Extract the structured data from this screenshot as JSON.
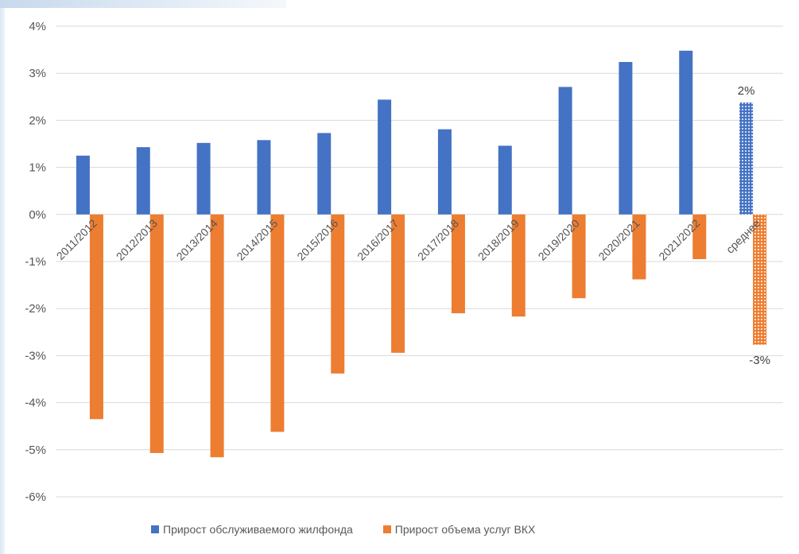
{
  "colors": {
    "series1": "#4472C4",
    "series2": "#ED7D31",
    "grid": "#D9D9D9"
  },
  "chart_data": {
    "type": "bar",
    "categories": [
      "2011/2012",
      "2012/2013",
      "2013/2014",
      "2014/2015",
      "2015/2016",
      "2016/2017",
      "2017/2018",
      "2018/2019",
      "2019/2020",
      "2020/2021",
      "2021/2022",
      "среднее"
    ],
    "series": [
      {
        "name": "Прирост обслуживаемого жилфонда",
        "values": [
          1.25,
          1.43,
          1.52,
          1.58,
          1.73,
          2.44,
          1.81,
          1.46,
          2.71,
          3.24,
          3.48,
          2.38
        ]
      },
      {
        "name": "Прирост объема услуг ВКХ",
        "values": [
          -4.35,
          -5.07,
          -5.16,
          -4.62,
          -3.38,
          -2.94,
          -2.1,
          -2.17,
          -1.78,
          -1.38,
          -0.95,
          -2.77
        ]
      }
    ],
    "highlight_category": "среднее",
    "highlight_pattern": "dotted",
    "data_labels": {
      "series1": "2%",
      "series2": "-3%"
    },
    "yticks": [
      "4%",
      "3%",
      "2%",
      "1%",
      "0%",
      "-1%",
      "-2%",
      "-3%",
      "-4%",
      "-5%",
      "-6%"
    ],
    "ylim": [
      -6,
      4
    ],
    "grid": true,
    "legend_position": "bottom",
    "title": "",
    "xlabel": "",
    "ylabel": ""
  }
}
